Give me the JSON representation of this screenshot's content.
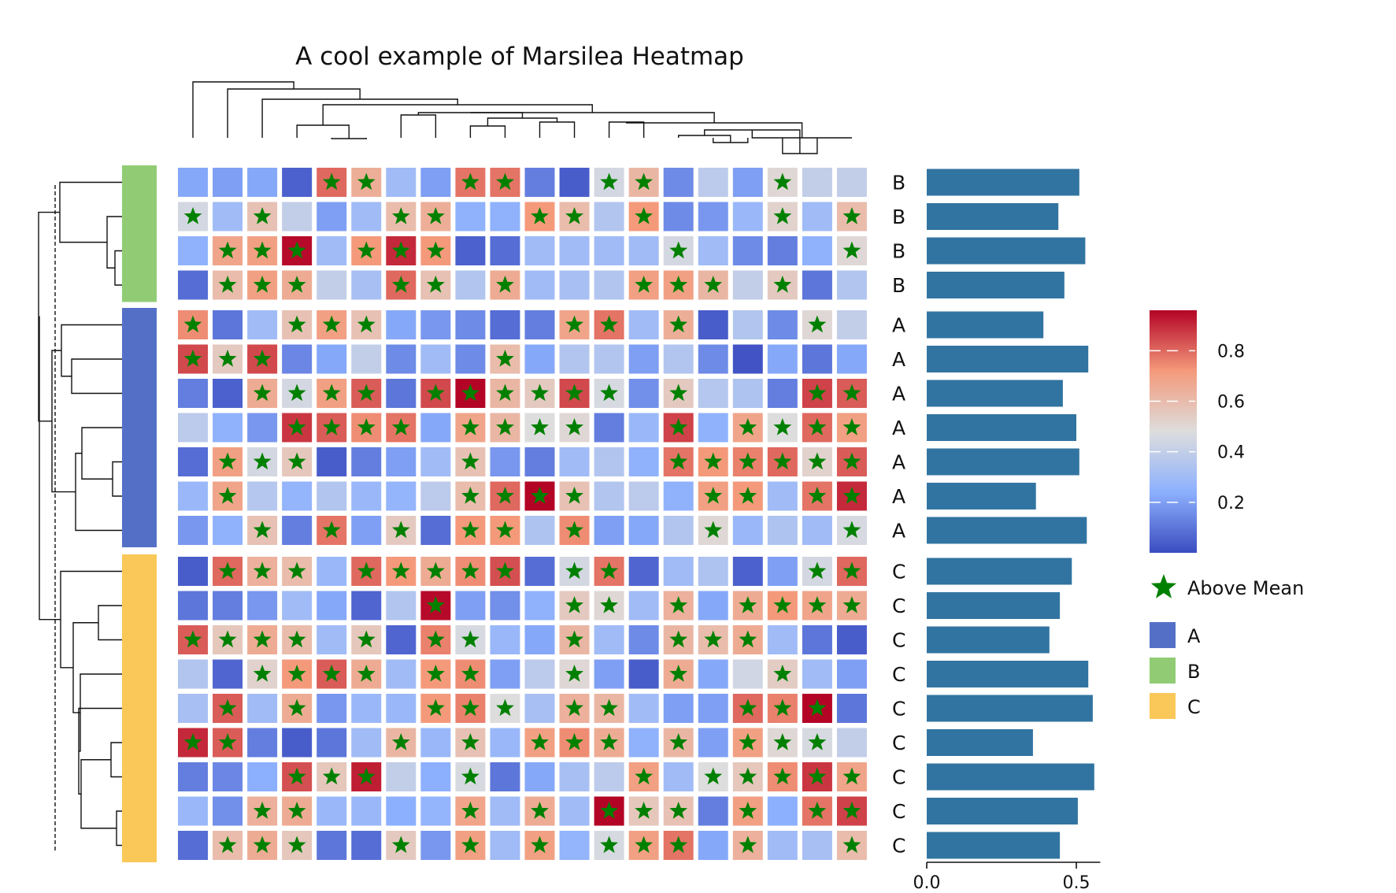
{
  "chart_data": {
    "type": "heatmap",
    "title": "A cool example of Marsilea Heatmap",
    "row_groups": [
      "B",
      "B",
      "B",
      "B",
      "A",
      "A",
      "A",
      "A",
      "A",
      "A",
      "A",
      "C",
      "C",
      "C",
      "C",
      "C",
      "C",
      "C",
      "C",
      "C"
    ],
    "group_colors": {
      "A": "#5470c6",
      "B": "#91cc75",
      "C": "#fac858"
    },
    "values": [
      [
        0.22,
        0.2,
        0.22,
        0.05,
        0.8,
        0.65,
        0.3,
        0.2,
        0.78,
        0.78,
        0.12,
        0.04,
        0.45,
        0.62,
        0.15,
        0.38,
        0.2,
        0.5,
        0.4,
        0.4
      ],
      [
        0.45,
        0.3,
        0.58,
        0.4,
        0.2,
        0.3,
        0.6,
        0.65,
        0.25,
        0.25,
        0.72,
        0.6,
        0.35,
        0.72,
        0.15,
        0.18,
        0.28,
        0.52,
        0.3,
        0.6
      ],
      [
        0.25,
        0.68,
        0.7,
        0.95,
        0.3,
        0.72,
        0.9,
        0.72,
        0.05,
        0.08,
        0.3,
        0.3,
        0.3,
        0.3,
        0.45,
        0.3,
        0.15,
        0.12,
        0.25,
        0.5
      ],
      [
        0.08,
        0.6,
        0.7,
        0.66,
        0.4,
        0.32,
        0.8,
        0.58,
        0.35,
        0.66,
        0.3,
        0.32,
        0.35,
        0.7,
        0.7,
        0.62,
        0.4,
        0.55,
        0.1,
        0.35
      ],
      [
        0.74,
        0.1,
        0.3,
        0.58,
        0.7,
        0.58,
        0.22,
        0.18,
        0.15,
        0.08,
        0.12,
        0.68,
        0.78,
        0.3,
        0.65,
        0.04,
        0.35,
        0.15,
        0.5,
        0.4
      ],
      [
        0.85,
        0.55,
        0.85,
        0.14,
        0.22,
        0.4,
        0.15,
        0.3,
        0.15,
        0.6,
        0.22,
        0.35,
        0.35,
        0.2,
        0.35,
        0.15,
        0.02,
        0.22,
        0.1,
        0.22
      ],
      [
        0.12,
        0.05,
        0.66,
        0.45,
        0.7,
        0.82,
        0.1,
        0.85,
        0.96,
        0.62,
        0.55,
        0.85,
        0.46,
        0.16,
        0.55,
        0.36,
        0.34,
        0.12,
        0.86,
        0.82
      ],
      [
        0.38,
        0.25,
        0.18,
        0.88,
        0.82,
        0.74,
        0.78,
        0.22,
        0.68,
        0.62,
        0.48,
        0.5,
        0.12,
        0.28,
        0.86,
        0.25,
        0.68,
        0.48,
        0.8,
        0.7
      ],
      [
        0.08,
        0.7,
        0.45,
        0.56,
        0.04,
        0.12,
        0.2,
        0.3,
        0.58,
        0.18,
        0.12,
        0.3,
        0.35,
        0.25,
        0.78,
        0.72,
        0.76,
        0.8,
        0.52,
        0.82
      ],
      [
        0.28,
        0.68,
        0.36,
        0.26,
        0.35,
        0.28,
        0.26,
        0.38,
        0.6,
        0.8,
        0.96,
        0.58,
        0.35,
        0.38,
        0.25,
        0.7,
        0.72,
        0.3,
        0.78,
        0.9
      ],
      [
        0.18,
        0.25,
        0.58,
        0.12,
        0.78,
        0.2,
        0.55,
        0.08,
        0.72,
        0.72,
        0.34,
        0.74,
        0.2,
        0.22,
        0.35,
        0.5,
        0.28,
        0.34,
        0.3,
        0.46
      ],
      [
        0.04,
        0.8,
        0.64,
        0.6,
        0.28,
        0.8,
        0.72,
        0.66,
        0.74,
        0.84,
        0.08,
        0.45,
        0.78,
        0.06,
        0.3,
        0.34,
        0.05,
        0.2,
        0.45,
        0.8
      ],
      [
        0.1,
        0.12,
        0.18,
        0.3,
        0.22,
        0.06,
        0.35,
        0.95,
        0.2,
        0.16,
        0.25,
        0.55,
        0.5,
        0.3,
        0.64,
        0.22,
        0.66,
        0.72,
        0.68,
        0.66
      ],
      [
        0.82,
        0.56,
        0.66,
        0.6,
        0.3,
        0.56,
        0.06,
        0.76,
        0.46,
        0.28,
        0.22,
        0.62,
        0.3,
        0.15,
        0.62,
        0.6,
        0.66,
        0.3,
        0.1,
        0.04
      ],
      [
        0.35,
        0.06,
        0.52,
        0.72,
        0.82,
        0.66,
        0.3,
        0.72,
        0.74,
        0.2,
        0.38,
        0.5,
        0.2,
        0.04,
        0.66,
        0.22,
        0.44,
        0.54,
        0.3,
        0.2
      ],
      [
        0.32,
        0.82,
        0.3,
        0.66,
        0.18,
        0.28,
        0.28,
        0.72,
        0.76,
        0.48,
        0.32,
        0.64,
        0.62,
        0.3,
        0.2,
        0.2,
        0.8,
        0.76,
        0.96,
        0.1
      ],
      [
        0.9,
        0.82,
        0.12,
        0.04,
        0.1,
        0.3,
        0.62,
        0.28,
        0.58,
        0.28,
        0.7,
        0.74,
        0.66,
        0.25,
        0.62,
        0.2,
        0.7,
        0.5,
        0.46,
        0.4
      ],
      [
        0.12,
        0.14,
        0.24,
        0.84,
        0.56,
        0.92,
        0.4,
        0.24,
        0.46,
        0.1,
        0.22,
        0.32,
        0.38,
        0.7,
        0.3,
        0.48,
        0.56,
        0.74,
        0.88,
        0.68
      ],
      [
        0.28,
        0.16,
        0.64,
        0.66,
        0.28,
        0.28,
        0.24,
        0.26,
        0.68,
        0.3,
        0.66,
        0.3,
        0.96,
        0.56,
        0.58,
        0.12,
        0.7,
        0.24,
        0.78,
        0.86
      ],
      [
        0.08,
        0.6,
        0.66,
        0.56,
        0.1,
        0.08,
        0.55,
        0.18,
        0.7,
        0.3,
        0.7,
        0.26,
        0.46,
        0.7,
        0.78,
        0.22,
        0.64,
        0.3,
        0.32,
        0.6
      ]
    ],
    "bar_values": [
      0.51,
      0.44,
      0.53,
      0.46,
      0.39,
      0.54,
      0.455,
      0.5,
      0.51,
      0.365,
      0.535,
      0.485,
      0.445,
      0.41,
      0.54,
      0.555,
      0.355,
      0.56,
      0.505,
      0.445
    ],
    "bar_axis": {
      "ticks": [
        0.0,
        0.5
      ],
      "tick_labels": [
        "0.0",
        "0.5"
      ],
      "lim": [
        0,
        0.58
      ]
    },
    "bar_color": "#3274a1",
    "colorbar": {
      "ticks": [
        0.2,
        0.4,
        0.6,
        0.8
      ],
      "tick_labels": [
        "0.2",
        "0.4",
        "0.6",
        "0.8"
      ],
      "range": [
        0.0,
        0.96
      ]
    },
    "star_color": "#008000",
    "legend": {
      "marker_label": "Above Mean",
      "groups": [
        "A",
        "B",
        "C"
      ]
    }
  }
}
